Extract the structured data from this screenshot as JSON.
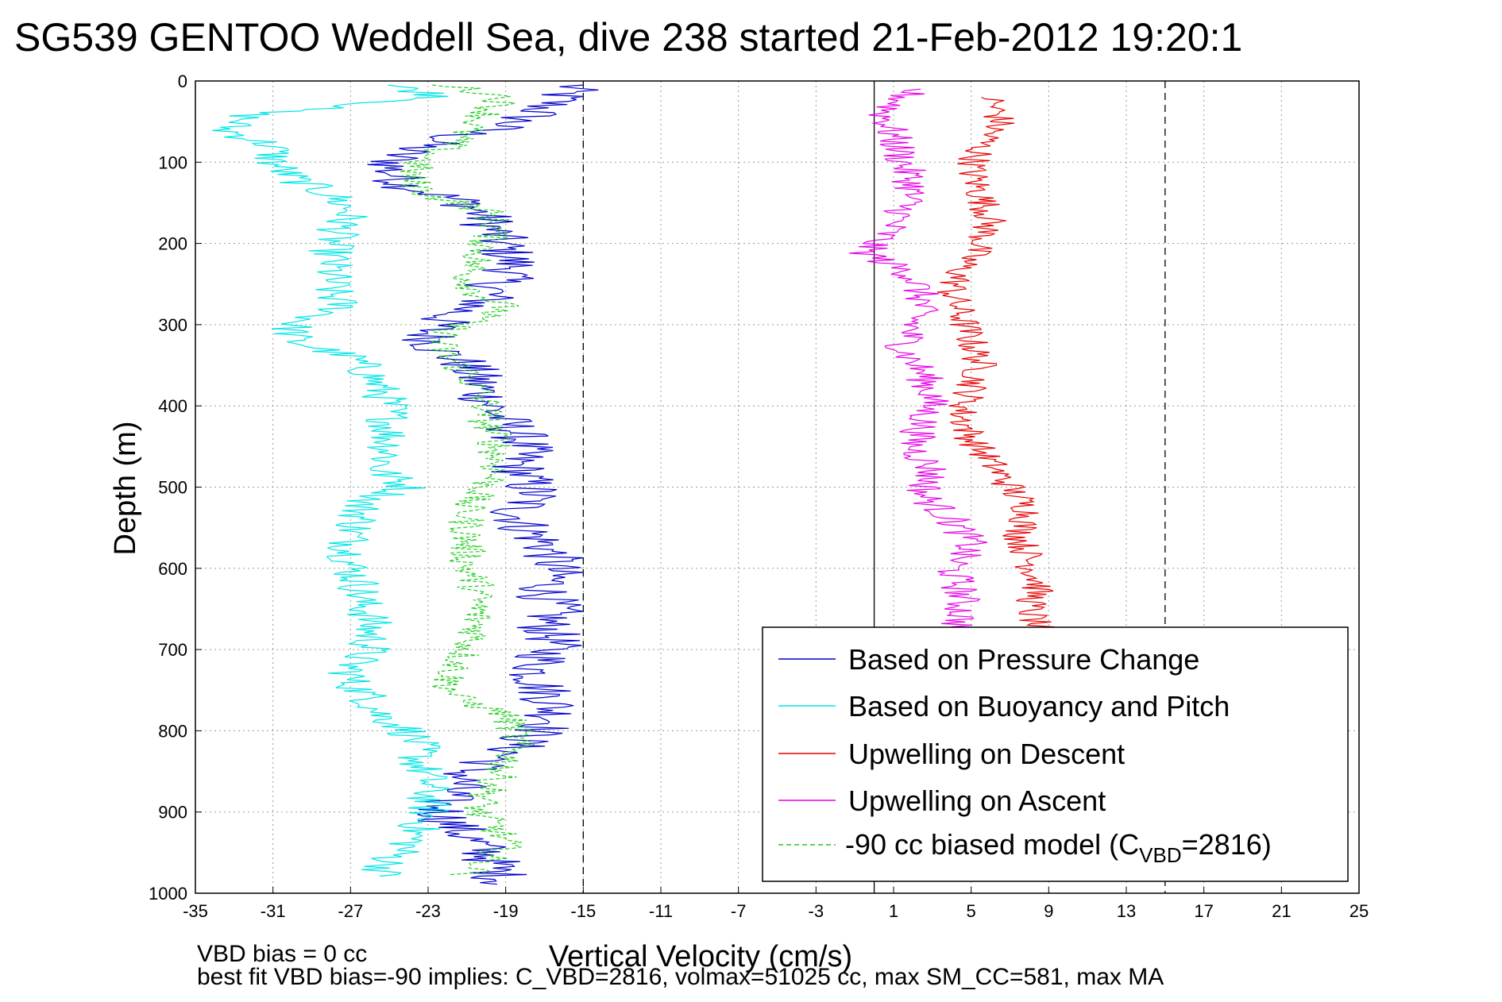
{
  "chart_data": {
    "type": "line",
    "title": "SG539 GENTOO Weddell Sea, dive 238 started 21-Feb-2012 19:20:1",
    "xlabel": "Vertical Velocity (cm/s)",
    "ylabel": "Depth (m)",
    "xlim": [
      -35,
      25
    ],
    "ylim": [
      0,
      1000
    ],
    "y_reversed": true,
    "grid": true,
    "grid_style": "dotted",
    "x_ticks": [
      -35,
      -31,
      -27,
      -23,
      -19,
      -15,
      -11,
      -7,
      -3,
      1,
      5,
      9,
      13,
      17,
      21,
      25
    ],
    "x_tick_labels": [
      "-35",
      "-31",
      "-27",
      "-23",
      "-19",
      "-15",
      "-11",
      "-7",
      "-3",
      "1",
      "5",
      "9",
      "13",
      "17",
      "21",
      "25"
    ],
    "y_ticks": [
      0,
      100,
      200,
      300,
      400,
      500,
      600,
      700,
      800,
      900,
      1000
    ],
    "y_tick_labels": [
      "0",
      "100",
      "200",
      "300",
      "400",
      "500",
      "600",
      "700",
      "800",
      "900",
      "1000"
    ],
    "reference_lines": [
      {
        "x": 0,
        "style": "solid",
        "color": "#000000"
      },
      {
        "x": -15,
        "style": "dashed",
        "color": "#000000"
      },
      {
        "x": 15,
        "style": "dashed",
        "color": "#000000"
      }
    ],
    "legend_position": "bottom-right",
    "series": [
      {
        "name": "Based on Pressure Change",
        "color": "#0000cc",
        "style": "solid",
        "depth": [
          5,
          25,
          40,
          55,
          70,
          90,
          110,
          130,
          150,
          170,
          190,
          210,
          230,
          250,
          270,
          290,
          310,
          330,
          350,
          370,
          390,
          410,
          430,
          450,
          470,
          490,
          510,
          530,
          550,
          570,
          590,
          610,
          630,
          650,
          670,
          690,
          710,
          730,
          750,
          770,
          790,
          810,
          830,
          850,
          870,
          890,
          910,
          930,
          950,
          970,
          990
        ],
        "values": [
          -15.5,
          -16.5,
          -17.5,
          -19,
          -22,
          -24.5,
          -25,
          -24,
          -21,
          -20,
          -19.5,
          -19,
          -18.5,
          -19.5,
          -20,
          -22,
          -23,
          -22.5,
          -21,
          -20.5,
          -20,
          -19.5,
          -18.5,
          -18,
          -18.5,
          -18,
          -17.5,
          -18.5,
          -18,
          -17,
          -16.5,
          -16.5,
          -17,
          -16.5,
          -17,
          -16.5,
          -17,
          -17.5,
          -17,
          -16.5,
          -16.5,
          -18,
          -19,
          -21,
          -21.5,
          -22.5,
          -22,
          -21,
          -20,
          -19.5,
          -19
        ]
      },
      {
        "name": "Based on Buoyancy and Pitch",
        "color": "#00e5e5",
        "style": "solid",
        "depth": [
          5,
          20,
          40,
          60,
          80,
          100,
          120,
          140,
          160,
          180,
          200,
          220,
          240,
          260,
          280,
          300,
          320,
          340,
          360,
          380,
          400,
          420,
          440,
          460,
          480,
          500,
          520,
          540,
          560,
          580,
          600,
          620,
          640,
          660,
          680,
          700,
          720,
          740,
          760,
          780,
          800,
          820,
          840,
          860,
          880,
          900,
          920,
          940,
          960,
          980
        ],
        "values": [
          -25,
          -22,
          -32,
          -33.5,
          -31,
          -31,
          -30,
          -28,
          -27,
          -27.5,
          -28,
          -28,
          -28,
          -28,
          -27.5,
          -30,
          -30,
          -27,
          -26,
          -25.5,
          -25,
          -25,
          -25,
          -25,
          -25.5,
          -24,
          -26.5,
          -26.5,
          -27,
          -27,
          -27,
          -26.5,
          -26.5,
          -26,
          -26,
          -26,
          -27,
          -27,
          -26,
          -25.5,
          -24,
          -23.5,
          -23.5,
          -23,
          -23,
          -23,
          -23.5,
          -24,
          -25,
          -25.5
        ]
      },
      {
        "name": "Upwelling on Descent",
        "color": "#e60000",
        "style": "solid",
        "depth": [
          20,
          50,
          80,
          110,
          140,
          170,
          200,
          230,
          260,
          290,
          320,
          350,
          380,
          410,
          440,
          470,
          500,
          530,
          560,
          590,
          620,
          650,
          680
        ],
        "values": [
          6,
          6.5,
          5.5,
          5,
          5.5,
          6,
          5.5,
          4.5,
          4,
          4.5,
          5,
          5.5,
          5,
          4.5,
          5,
          6,
          7,
          8,
          7.5,
          8,
          8.5,
          8,
          8.5
        ]
      },
      {
        "name": "Upwelling on Ascent",
        "color": "#e600e6",
        "style": "solid",
        "depth": [
          10,
          40,
          70,
          100,
          130,
          160,
          190,
          210,
          240,
          270,
          300,
          330,
          360,
          390,
          420,
          450,
          480,
          510,
          540,
          570,
          600,
          630,
          660,
          690
        ],
        "values": [
          2,
          0.5,
          1,
          1.5,
          2,
          1.5,
          0.5,
          -0.5,
          2,
          2.5,
          2,
          1.5,
          2.5,
          3,
          2.5,
          2,
          3,
          2.5,
          4,
          5,
          4,
          4.5,
          4.5,
          4
        ]
      },
      {
        "name": "-90 cc biased model (C_VBD=2816)",
        "color": "#22cc22",
        "style": "dashed",
        "depth": [
          5,
          20,
          40,
          60,
          80,
          100,
          120,
          140,
          160,
          180,
          200,
          220,
          240,
          260,
          280,
          300,
          320,
          340,
          360,
          380,
          400,
          420,
          440,
          460,
          480,
          500,
          520,
          540,
          560,
          580,
          600,
          620,
          640,
          660,
          680,
          700,
          720,
          740,
          760,
          780,
          800,
          820,
          840,
          860,
          880,
          900,
          920,
          940,
          960,
          980
        ],
        "values": [
          -22,
          -19,
          -20,
          -21,
          -22,
          -23.5,
          -24,
          -23,
          -20,
          -19.5,
          -20,
          -20.5,
          -21,
          -20.5,
          -19,
          -21.5,
          -22.5,
          -22,
          -21,
          -20.5,
          -20,
          -20,
          -19.5,
          -19.5,
          -19.5,
          -20,
          -21,
          -21,
          -21,
          -21,
          -21,
          -20.5,
          -20.5,
          -20.5,
          -20.5,
          -21,
          -21.5,
          -22,
          -21.5,
          -19,
          -18.5,
          -18.5,
          -19,
          -19.5,
          -20,
          -20.5,
          -19.5,
          -19,
          -20,
          -21
        ]
      }
    ]
  },
  "legend": {
    "items": [
      {
        "label": "Based on Pressure Change",
        "color": "#0000cc",
        "style": "solid"
      },
      {
        "label": "Based on Buoyancy and Pitch",
        "color": "#00e5e5",
        "style": "solid"
      },
      {
        "label": "Upwelling on Descent",
        "color": "#e60000",
        "style": "solid"
      },
      {
        "label": "Upwelling on Ascent",
        "color": "#e600e6",
        "style": "solid"
      }
    ],
    "model_item": {
      "prefix": "-90 cc biased model (C",
      "sub": "VBD",
      "suffix": "=2816)",
      "color": "#22cc22",
      "style": "dashed"
    }
  },
  "footer": {
    "line1": "VBD bias = 0 cc",
    "line2": "best fit VBD bias=-90 implies: C_VBD=2816, volmax=51025 cc, max SM_CC=581, max MA"
  }
}
